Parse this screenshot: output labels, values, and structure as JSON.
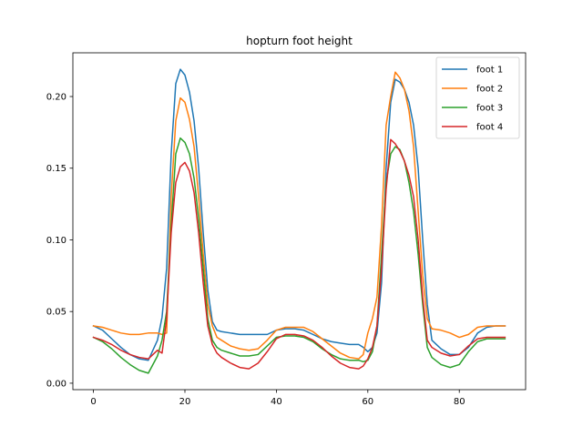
{
  "chart_data": {
    "type": "line",
    "title": "hopturn foot height",
    "xlabel": "",
    "ylabel": "",
    "xlim": [
      -4.5,
      94.5
    ],
    "ylim": [
      -0.0045,
      0.2305
    ],
    "xticks": [
      0,
      20,
      40,
      60,
      80
    ],
    "xtick_labels": [
      "0",
      "20",
      "40",
      "60",
      "80"
    ],
    "yticks": [
      0.0,
      0.05,
      0.1,
      0.15,
      0.2
    ],
    "ytick_labels": [
      "0.00",
      "0.05",
      "0.10",
      "0.15",
      "0.20"
    ],
    "grid": false,
    "legend_position": "top-right",
    "x": [
      0,
      2,
      4,
      6,
      8,
      10,
      12,
      14,
      15,
      16,
      17,
      18,
      19,
      20,
      21,
      22,
      23,
      24,
      25,
      26,
      27,
      28,
      30,
      32,
      34,
      36,
      38,
      40,
      42,
      44,
      46,
      48,
      50,
      52,
      54,
      56,
      58,
      59,
      60,
      61,
      62,
      63,
      64,
      65,
      66,
      67,
      68,
      69,
      70,
      71,
      72,
      73,
      74,
      76,
      78,
      80,
      82,
      84,
      86,
      88,
      90
    ],
    "series": [
      {
        "name": "foot 1",
        "color": "#1f77b4",
        "values": [
          0.04,
          0.037,
          0.031,
          0.025,
          0.02,
          0.017,
          0.016,
          0.03,
          0.046,
          0.08,
          0.16,
          0.209,
          0.219,
          0.215,
          0.203,
          0.183,
          0.15,
          0.105,
          0.065,
          0.043,
          0.037,
          0.036,
          0.035,
          0.034,
          0.034,
          0.034,
          0.034,
          0.037,
          0.038,
          0.038,
          0.037,
          0.034,
          0.031,
          0.029,
          0.028,
          0.027,
          0.027,
          0.025,
          0.022,
          0.025,
          0.035,
          0.07,
          0.15,
          0.196,
          0.212,
          0.21,
          0.205,
          0.196,
          0.18,
          0.15,
          0.1,
          0.055,
          0.03,
          0.024,
          0.02,
          0.02,
          0.025,
          0.035,
          0.039,
          0.04,
          0.04
        ]
      },
      {
        "name": "foot 2",
        "color": "#ff7f0e",
        "values": [
          0.04,
          0.039,
          0.037,
          0.035,
          0.034,
          0.034,
          0.035,
          0.035,
          0.034,
          0.035,
          0.13,
          0.183,
          0.199,
          0.196,
          0.184,
          0.165,
          0.13,
          0.09,
          0.055,
          0.04,
          0.032,
          0.03,
          0.026,
          0.024,
          0.023,
          0.024,
          0.03,
          0.037,
          0.039,
          0.039,
          0.039,
          0.036,
          0.031,
          0.026,
          0.021,
          0.018,
          0.017,
          0.02,
          0.035,
          0.045,
          0.06,
          0.11,
          0.18,
          0.2,
          0.217,
          0.213,
          0.205,
          0.19,
          0.165,
          0.12,
          0.075,
          0.045,
          0.038,
          0.037,
          0.035,
          0.032,
          0.034,
          0.039,
          0.04,
          0.04,
          0.04
        ]
      },
      {
        "name": "foot 3",
        "color": "#2ca02c",
        "values": [
          0.032,
          0.029,
          0.024,
          0.018,
          0.013,
          0.009,
          0.007,
          0.019,
          0.03,
          0.05,
          0.11,
          0.16,
          0.171,
          0.168,
          0.16,
          0.143,
          0.115,
          0.08,
          0.045,
          0.03,
          0.025,
          0.023,
          0.021,
          0.019,
          0.019,
          0.02,
          0.026,
          0.032,
          0.033,
          0.033,
          0.032,
          0.029,
          0.024,
          0.02,
          0.017,
          0.016,
          0.016,
          0.015,
          0.016,
          0.022,
          0.04,
          0.09,
          0.14,
          0.16,
          0.165,
          0.163,
          0.155,
          0.14,
          0.12,
          0.09,
          0.055,
          0.025,
          0.018,
          0.013,
          0.011,
          0.013,
          0.022,
          0.029,
          0.031,
          0.031,
          0.031
        ]
      },
      {
        "name": "foot 4",
        "color": "#d62728",
        "values": [
          0.032,
          0.03,
          0.027,
          0.023,
          0.02,
          0.018,
          0.017,
          0.023,
          0.021,
          0.045,
          0.105,
          0.14,
          0.151,
          0.154,
          0.148,
          0.133,
          0.105,
          0.07,
          0.04,
          0.027,
          0.021,
          0.018,
          0.014,
          0.011,
          0.01,
          0.014,
          0.022,
          0.031,
          0.034,
          0.034,
          0.033,
          0.03,
          0.025,
          0.019,
          0.014,
          0.011,
          0.01,
          0.012,
          0.017,
          0.025,
          0.04,
          0.08,
          0.135,
          0.17,
          0.167,
          0.162,
          0.155,
          0.145,
          0.13,
          0.1,
          0.06,
          0.03,
          0.025,
          0.021,
          0.019,
          0.02,
          0.026,
          0.031,
          0.032,
          0.032,
          0.032
        ]
      }
    ]
  }
}
